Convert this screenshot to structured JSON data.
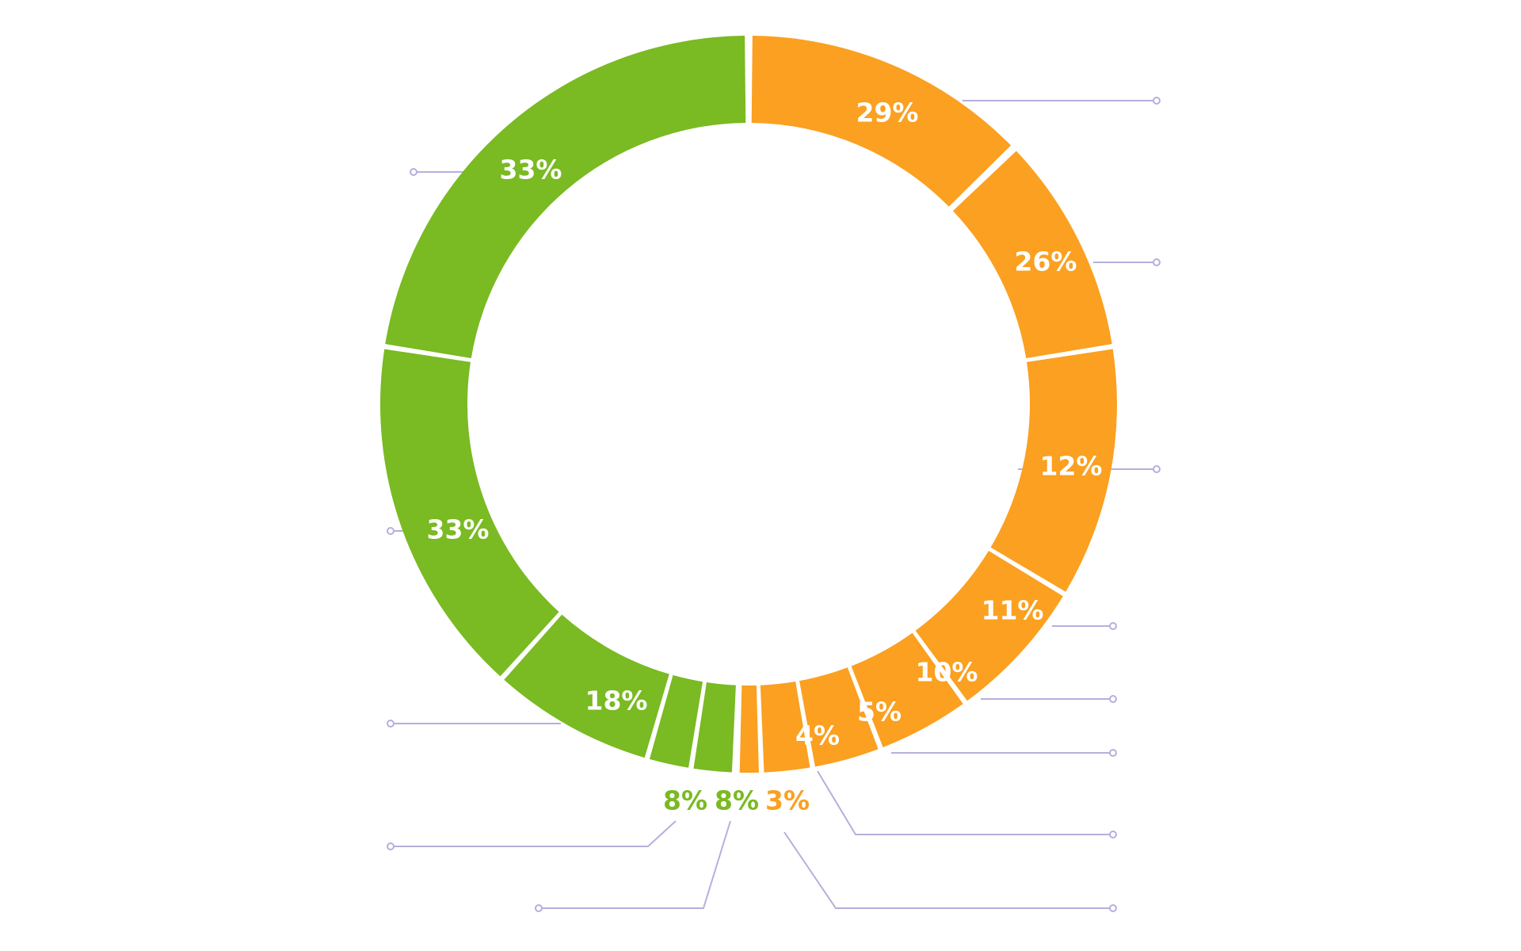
{
  "chart_data": {
    "type": "pie",
    "variant": "donut",
    "colors": {
      "orange": "#fba020",
      "green": "#7aba22",
      "leader": "#b3b0dd",
      "label_light": "#ffffff"
    },
    "segments": [
      {
        "label": "29%",
        "value": 29,
        "color": "orange"
      },
      {
        "label": "26%",
        "value": 26,
        "color": "orange"
      },
      {
        "label": "12%",
        "value": 12,
        "color": "orange"
      },
      {
        "label": "11%",
        "value": 11,
        "color": "orange"
      },
      {
        "label": "10%",
        "value": 10,
        "color": "orange"
      },
      {
        "label": "5%",
        "value": 5,
        "color": "orange"
      },
      {
        "label": "4%",
        "value": 4,
        "color": "orange"
      },
      {
        "label": "3%",
        "value": 3,
        "color": "orange"
      },
      {
        "label": "8%",
        "value": 8,
        "color": "green"
      },
      {
        "label": "8%",
        "value": 8,
        "color": "green"
      },
      {
        "label": "18%",
        "value": 18,
        "color": "green"
      },
      {
        "label": "33%",
        "value": 33,
        "color": "green"
      },
      {
        "label": "33%",
        "value": 33,
        "color": "green"
      }
    ],
    "title": "",
    "legend": "none"
  }
}
